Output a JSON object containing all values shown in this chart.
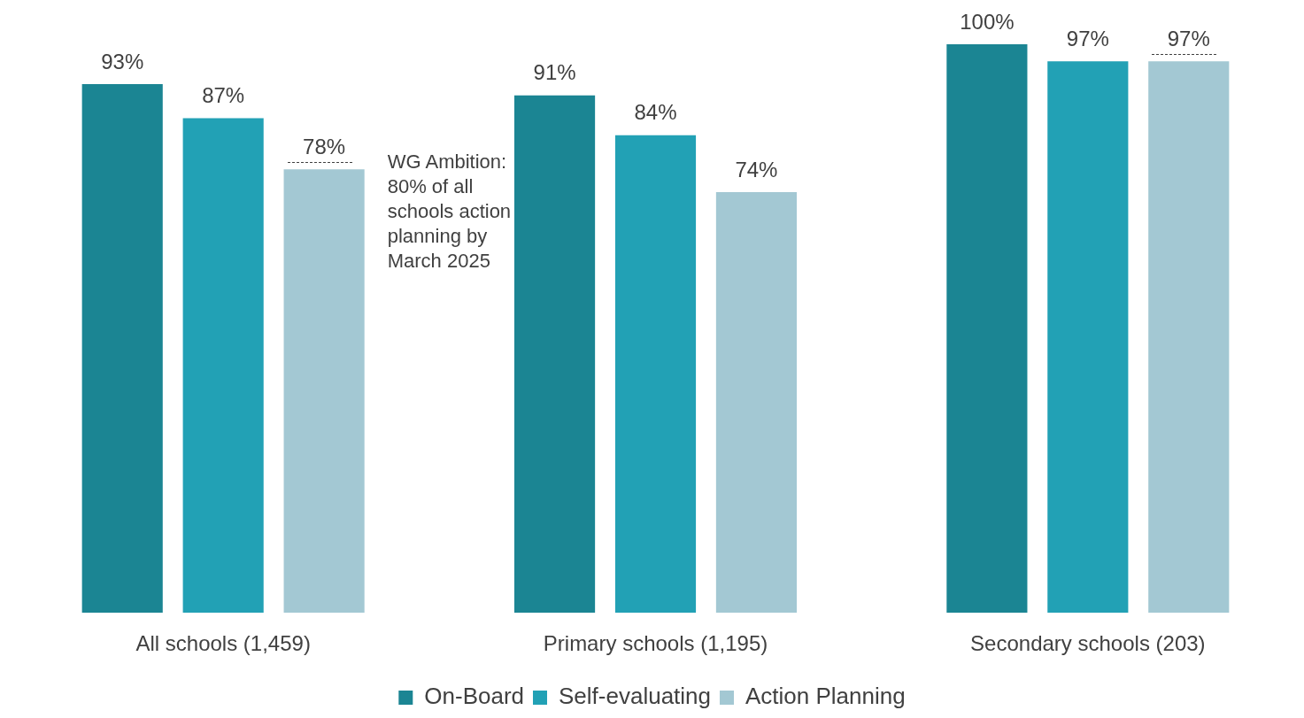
{
  "chart_data": {
    "type": "bar",
    "categories": [
      "All schools (1,459)",
      "Primary schools (1,195)",
      "Secondary schools (203)"
    ],
    "series": [
      {
        "name": "On-Board",
        "color": "#1b8593",
        "values": [
          93,
          91,
          100
        ],
        "value_labels": [
          "93%",
          "91%",
          "100%"
        ]
      },
      {
        "name": "Self-evaluating",
        "color": "#22a1b5",
        "values": [
          87,
          84,
          97
        ],
        "value_labels": [
          "87%",
          "84%",
          "97%"
        ]
      },
      {
        "name": "Action Planning",
        "color": "#a3c8d3",
        "values": [
          78,
          74,
          97
        ],
        "value_labels": [
          "78%",
          "74%",
          "97%"
        ]
      }
    ],
    "annotations": [
      "WG Ambition: 80% of all schools action planning by March 2025"
    ],
    "grid": false,
    "legend": "bottom"
  }
}
